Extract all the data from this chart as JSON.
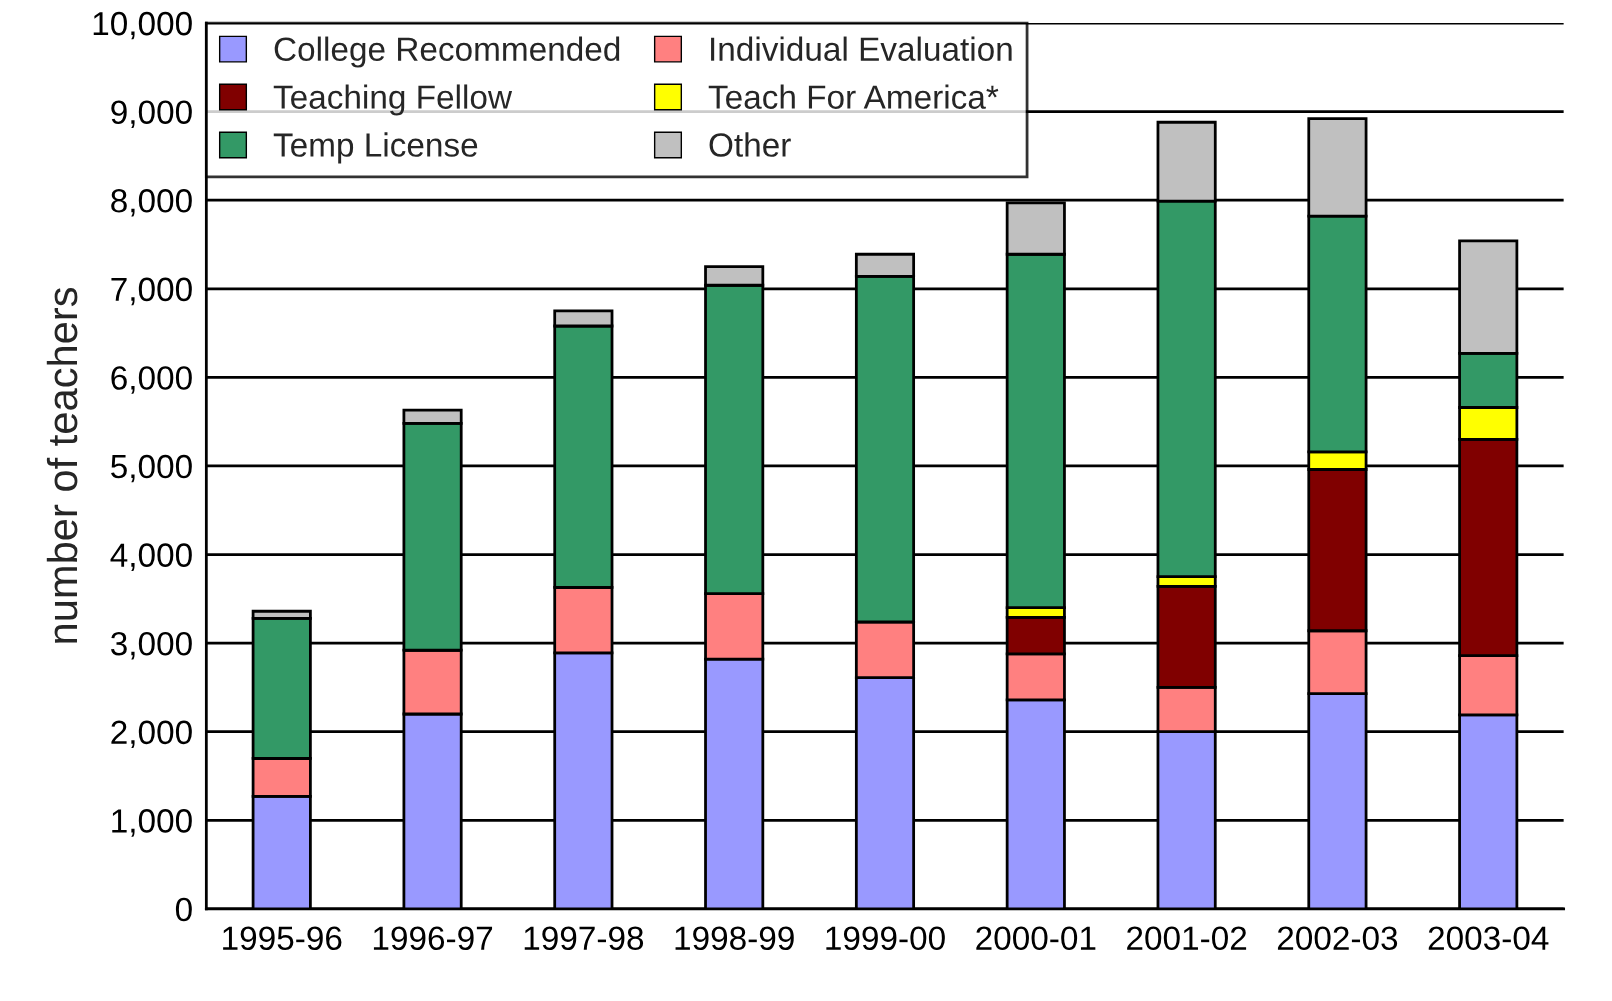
{
  "chart_data": {
    "type": "bar",
    "stacked": true,
    "ylabel": "number of teachers",
    "categories": [
      "1995-96",
      "1996-97",
      "1997-98",
      "1998-99",
      "1999-00",
      "2000-01",
      "2001-02",
      "2002-03",
      "2003-04"
    ],
    "series": [
      {
        "name": "College Recommended",
        "color": "#9999ff",
        "values": [
          1270,
          2200,
          2890,
          2820,
          2610,
          2360,
          2000,
          2430,
          2190
        ]
      },
      {
        "name": "Individual Evaluation",
        "color": "#ff8080",
        "values": [
          430,
          720,
          740,
          740,
          630,
          520,
          500,
          710,
          670
        ]
      },
      {
        "name": "Teaching Fellow",
        "color": "#800000",
        "values": [
          0,
          0,
          0,
          0,
          0,
          410,
          1140,
          1820,
          2440
        ]
      },
      {
        "name": "Teach For America*",
        "color": "#ffff00",
        "values": [
          0,
          0,
          0,
          0,
          0,
          110,
          110,
          200,
          360
        ]
      },
      {
        "name": "Temp License",
        "color": "#339966",
        "values": [
          1580,
          2560,
          2950,
          3480,
          3900,
          3990,
          4240,
          2660,
          610
        ]
      },
      {
        "name": "Other",
        "color": "#c0c0c0",
        "values": [
          80,
          150,
          170,
          210,
          250,
          580,
          890,
          1100,
          1270
        ]
      }
    ],
    "ylim": [
      0,
      10000
    ],
    "yticks": [
      0,
      {
        "value": 1000,
        "label": "1,000"
      },
      {
        "value": 2000,
        "label": "2,000"
      },
      {
        "value": 3000,
        "label": "3,000"
      },
      {
        "value": 4000,
        "label": "4,000"
      },
      {
        "value": 5000,
        "label": "5,000"
      },
      {
        "value": 6000,
        "label": "6,000"
      },
      {
        "value": 7000,
        "label": "7,000"
      },
      {
        "value": 8000,
        "label": "8,000"
      },
      {
        "value": 9000,
        "label": "9,000"
      },
      {
        "value": 10000,
        "label": "10,000"
      }
    ],
    "grid": "y",
    "legend": "top left"
  }
}
